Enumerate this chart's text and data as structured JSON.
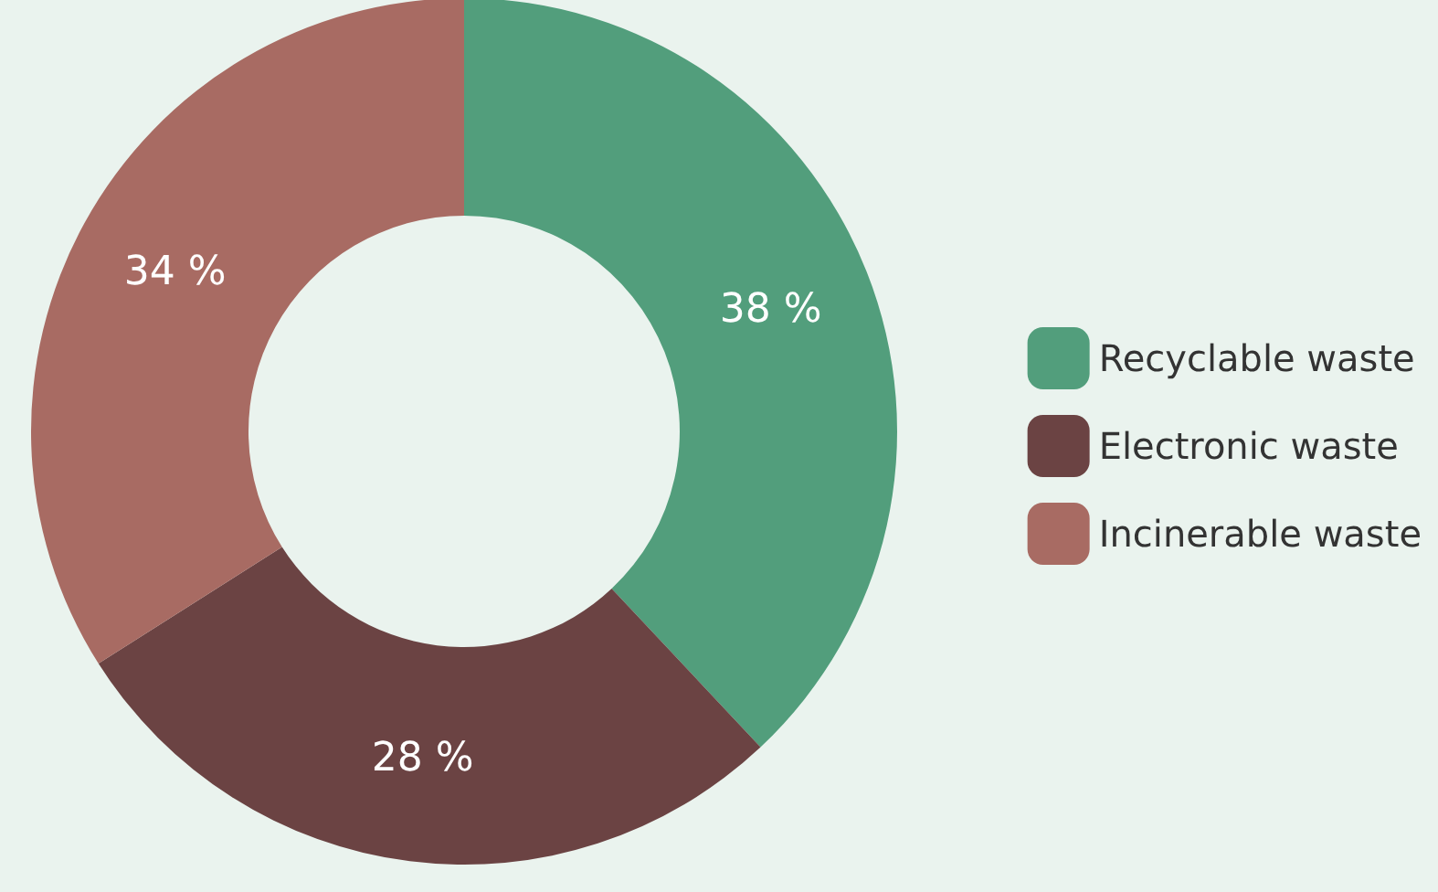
{
  "chart_data": {
    "type": "donut",
    "categories": [
      "Recyclable waste",
      "Electronic waste",
      "Incinerable waste"
    ],
    "values": [
      38,
      28,
      34
    ],
    "colors": [
      "#529e7c",
      "#6b4343",
      "#a86b63"
    ],
    "value_labels": [
      "38 %",
      "28 %",
      "34 %"
    ],
    "legend": "right"
  }
}
